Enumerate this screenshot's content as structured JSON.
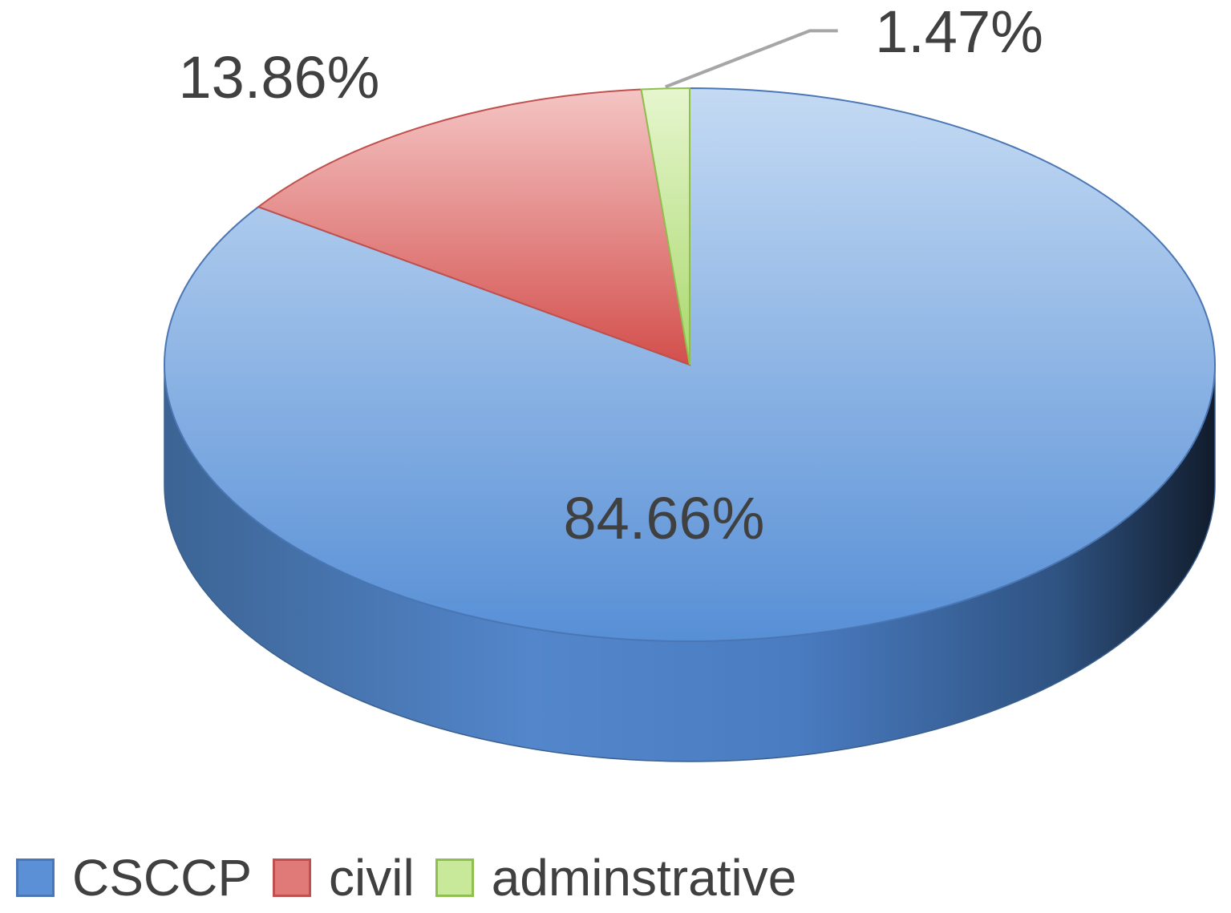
{
  "chart_data": {
    "type": "pie",
    "style": "3d",
    "labels": [
      "CSCCP",
      "civil",
      "adminstrative"
    ],
    "values": [
      84.66,
      13.86,
      1.47
    ],
    "data_labels": [
      "84.66%",
      "13.86%",
      "1.47%"
    ],
    "colors": [
      "#5b8fd6",
      "#e07a78",
      "#c8e89a"
    ],
    "legend": "bottom"
  }
}
